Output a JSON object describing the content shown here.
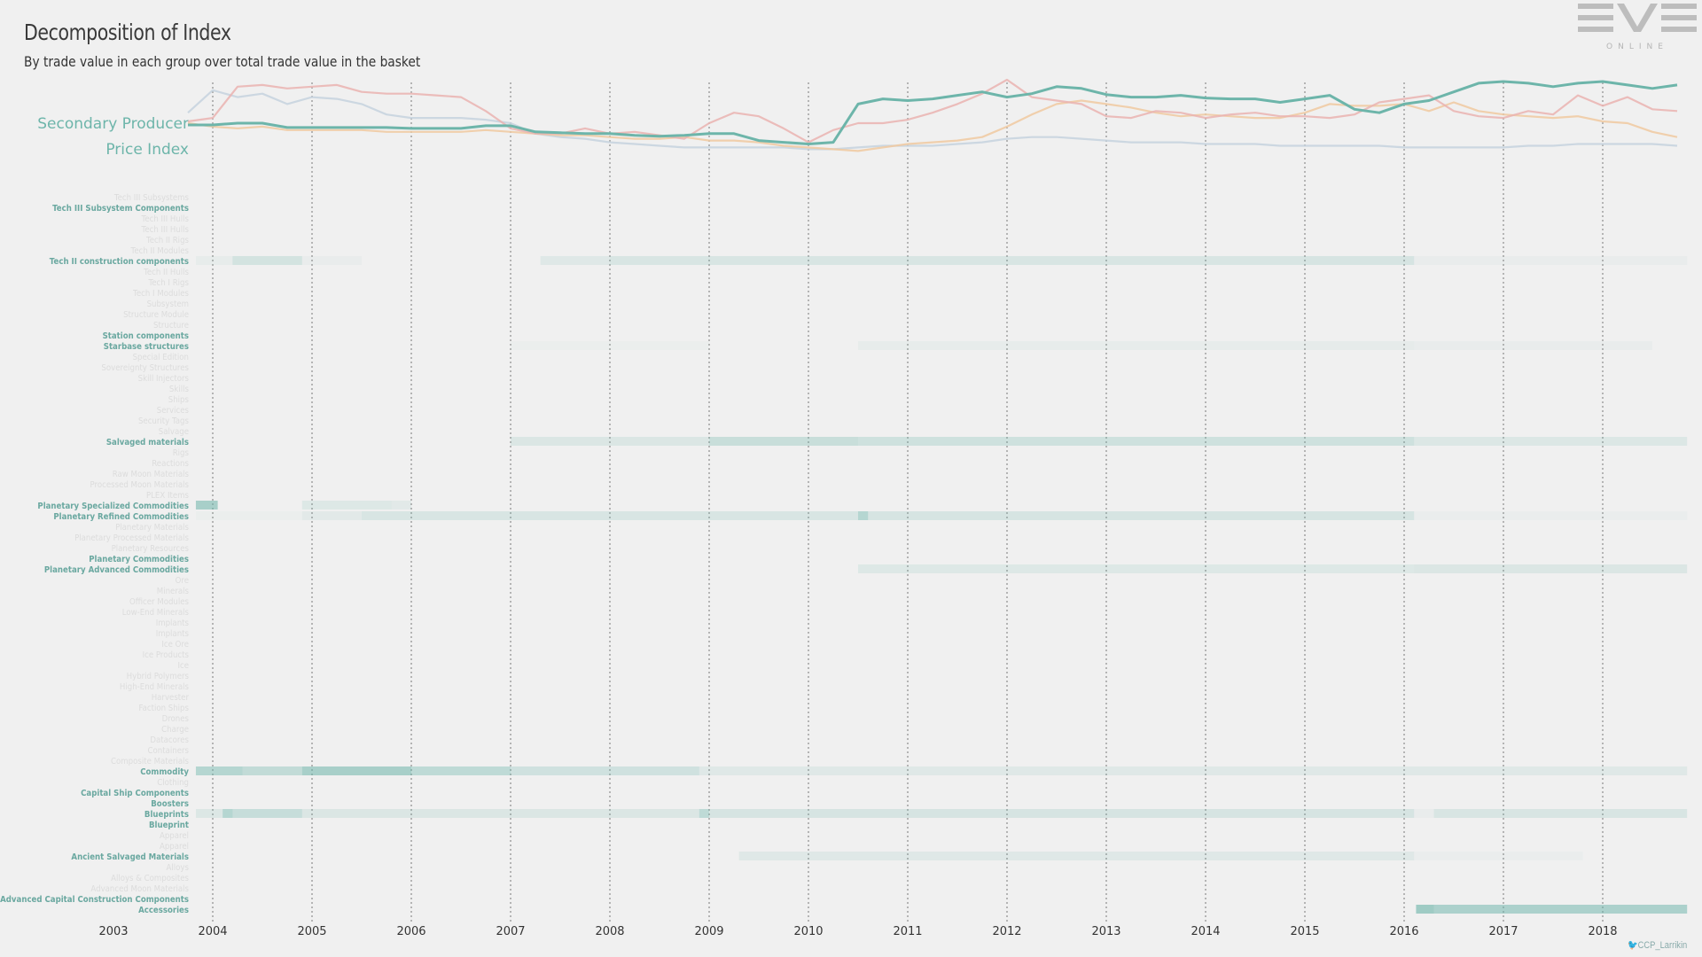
{
  "page": {
    "title": "Decomposition of Index",
    "subtitle": "By trade value in each group over total trade value in the basket",
    "index_label_line1": "Secondary Producer",
    "index_label_line2": "Price Index",
    "logo_text": "ONLINE",
    "credit": "CCP_Larrikin"
  },
  "colors": {
    "teal": "#6db5aa",
    "pink": "#eab3b0",
    "orange": "#f0c9a0",
    "blue": "#c5d2de",
    "axis_text": "#333333",
    "grid": "#777777"
  },
  "chart_data": [
    {
      "type": "line",
      "title": "Secondary Producer Price Index",
      "x": [
        "2003-10",
        "2004-01",
        "2004-04",
        "2004-07",
        "2004-10",
        "2005-01",
        "2005-04",
        "2005-07",
        "2005-10",
        "2006-01",
        "2006-04",
        "2006-07",
        "2006-10",
        "2007-01",
        "2007-04",
        "2007-07",
        "2007-10",
        "2008-01",
        "2008-04",
        "2008-07",
        "2008-10",
        "2009-01",
        "2009-04",
        "2009-07",
        "2009-10",
        "2010-01",
        "2010-04",
        "2010-07",
        "2010-10",
        "2011-01",
        "2011-04",
        "2011-07",
        "2011-10",
        "2012-01",
        "2012-04",
        "2012-07",
        "2012-10",
        "2013-01",
        "2013-04",
        "2013-07",
        "2013-10",
        "2014-01",
        "2014-04",
        "2014-07",
        "2014-10",
        "2015-01",
        "2015-04",
        "2015-07",
        "2015-10",
        "2016-01",
        "2016-04",
        "2016-07",
        "2016-10",
        "2017-01",
        "2017-04",
        "2017-07",
        "2017-10",
        "2018-01",
        "2018-04",
        "2018-07",
        "2018-10"
      ],
      "series": [
        {
          "color": "#6db5aa",
          "values": [
            0.48,
            0.48,
            0.5,
            0.5,
            0.45,
            0.45,
            0.45,
            0.45,
            0.45,
            0.44,
            0.44,
            0.44,
            0.47,
            0.47,
            0.4,
            0.39,
            0.38,
            0.38,
            0.36,
            0.35,
            0.36,
            0.38,
            0.38,
            0.3,
            0.28,
            0.26,
            0.28,
            0.72,
            0.78,
            0.76,
            0.78,
            0.82,
            0.86,
            0.8,
            0.84,
            0.92,
            0.9,
            0.83,
            0.8,
            0.8,
            0.82,
            0.79,
            0.78,
            0.78,
            0.74,
            0.78,
            0.82,
            0.66,
            0.62,
            0.72,
            0.76,
            0.86,
            0.96,
            0.98,
            0.96,
            0.92,
            0.96,
            0.98,
            0.94,
            0.9,
            0.94
          ]
        },
        {
          "color": "#eab3b0",
          "values": [
            0.52,
            0.56,
            0.92,
            0.94,
            0.9,
            0.92,
            0.94,
            0.86,
            0.84,
            0.84,
            0.82,
            0.8,
            0.64,
            0.44,
            0.38,
            0.38,
            0.44,
            0.38,
            0.4,
            0.36,
            0.32,
            0.5,
            0.62,
            0.58,
            0.44,
            0.28,
            0.42,
            0.5,
            0.5,
            0.54,
            0.62,
            0.72,
            0.84,
            1.0,
            0.8,
            0.76,
            0.72,
            0.58,
            0.56,
            0.64,
            0.62,
            0.56,
            0.6,
            0.62,
            0.58,
            0.58,
            0.56,
            0.6,
            0.74,
            0.78,
            0.82,
            0.64,
            0.58,
            0.56,
            0.64,
            0.6,
            0.82,
            0.7,
            0.8,
            0.66,
            0.64
          ]
        },
        {
          "color": "#f0c9a0",
          "values": [
            0.5,
            0.46,
            0.44,
            0.46,
            0.42,
            0.42,
            0.42,
            0.42,
            0.4,
            0.4,
            0.4,
            0.4,
            0.42,
            0.4,
            0.38,
            0.36,
            0.36,
            0.34,
            0.32,
            0.32,
            0.34,
            0.3,
            0.3,
            0.28,
            0.24,
            0.22,
            0.2,
            0.18,
            0.22,
            0.26,
            0.28,
            0.3,
            0.34,
            0.46,
            0.6,
            0.72,
            0.76,
            0.72,
            0.68,
            0.62,
            0.58,
            0.6,
            0.58,
            0.56,
            0.56,
            0.62,
            0.72,
            0.7,
            0.7,
            0.72,
            0.64,
            0.74,
            0.64,
            0.6,
            0.58,
            0.56,
            0.58,
            0.52,
            0.5,
            0.4,
            0.34
          ]
        },
        {
          "color": "#c5d2de",
          "values": [
            0.62,
            0.88,
            0.8,
            0.84,
            0.72,
            0.8,
            0.78,
            0.72,
            0.6,
            0.56,
            0.56,
            0.56,
            0.54,
            0.5,
            0.38,
            0.34,
            0.32,
            0.28,
            0.26,
            0.24,
            0.22,
            0.22,
            0.22,
            0.22,
            0.22,
            0.2,
            0.2,
            0.22,
            0.24,
            0.24,
            0.24,
            0.26,
            0.28,
            0.32,
            0.34,
            0.34,
            0.32,
            0.3,
            0.28,
            0.28,
            0.28,
            0.26,
            0.26,
            0.26,
            0.24,
            0.24,
            0.24,
            0.24,
            0.24,
            0.22,
            0.22,
            0.22,
            0.22,
            0.22,
            0.24,
            0.24,
            0.26,
            0.26,
            0.26,
            0.26,
            0.24
          ]
        }
      ]
    },
    {
      "type": "heatmap",
      "x_ticks": [
        "2003",
        "2004",
        "2005",
        "2006",
        "2007",
        "2008",
        "2009",
        "2010",
        "2011",
        "2012",
        "2013",
        "2014",
        "2015",
        "2016",
        "2017",
        "2018"
      ],
      "categories": [
        {
          "label": "Tech III Subsystems",
          "emphasis": 0
        },
        {
          "label": "Tech III Subsystem Components",
          "emphasis": 1
        },
        {
          "label": "Tech III Hulls",
          "emphasis": 0
        },
        {
          "label": "Tech III Hulls",
          "emphasis": 0
        },
        {
          "label": "Tech II Rigs",
          "emphasis": 0
        },
        {
          "label": "Tech II Modules",
          "emphasis": 0
        },
        {
          "label": "Tech II construction components",
          "emphasis": 1
        },
        {
          "label": "Tech II Hulls",
          "emphasis": 0
        },
        {
          "label": "Tech I Rigs",
          "emphasis": 0
        },
        {
          "label": "Tech I Modules",
          "emphasis": 0
        },
        {
          "label": "Subsystem",
          "emphasis": 0
        },
        {
          "label": "Structure Module",
          "emphasis": 0
        },
        {
          "label": "Structure",
          "emphasis": 0
        },
        {
          "label": "Station components",
          "emphasis": 1
        },
        {
          "label": "Starbase structures",
          "emphasis": 1
        },
        {
          "label": "Special Edition",
          "emphasis": 0
        },
        {
          "label": "Sovereignty Structures",
          "emphasis": 0
        },
        {
          "label": "Skill Injectors",
          "emphasis": 0
        },
        {
          "label": "Skills",
          "emphasis": 0
        },
        {
          "label": "Ships",
          "emphasis": 0
        },
        {
          "label": "Services",
          "emphasis": 0
        },
        {
          "label": "Security Tags",
          "emphasis": 0
        },
        {
          "label": "Salvage",
          "emphasis": 0
        },
        {
          "label": "Salvaged materials",
          "emphasis": 1
        },
        {
          "label": "Rigs",
          "emphasis": 0
        },
        {
          "label": "Reactions",
          "emphasis": 0
        },
        {
          "label": "Raw Moon Materials",
          "emphasis": 0
        },
        {
          "label": "Processed Moon Materials",
          "emphasis": 0
        },
        {
          "label": "PLEX Items",
          "emphasis": 0
        },
        {
          "label": "Planetary Specialized Commodities",
          "emphasis": 1
        },
        {
          "label": "Planetary Refined Commodities",
          "emphasis": 1
        },
        {
          "label": "Planetary Materials",
          "emphasis": 0
        },
        {
          "label": "Planetary Processed Materials",
          "emphasis": 0
        },
        {
          "label": "Planetary Resources",
          "emphasis": 0
        },
        {
          "label": "Planetary Commodities",
          "emphasis": 1
        },
        {
          "label": "Planetary Advanced Commodities",
          "emphasis": 1
        },
        {
          "label": "Ore",
          "emphasis": 0
        },
        {
          "label": "Minerals",
          "emphasis": 0
        },
        {
          "label": "Officer Modules",
          "emphasis": 0
        },
        {
          "label": "Low-End Minerals",
          "emphasis": 0
        },
        {
          "label": "Implants",
          "emphasis": 0
        },
        {
          "label": "Implants",
          "emphasis": 0
        },
        {
          "label": "Ice Ore",
          "emphasis": 0
        },
        {
          "label": "Ice Products",
          "emphasis": 0
        },
        {
          "label": "Ice",
          "emphasis": 0
        },
        {
          "label": "Hybrid Polymers",
          "emphasis": 0
        },
        {
          "label": "High-End Minerals",
          "emphasis": 0
        },
        {
          "label": "Harvester",
          "emphasis": 0
        },
        {
          "label": "Faction Ships",
          "emphasis": 0
        },
        {
          "label": "Drones",
          "emphasis": 0
        },
        {
          "label": "Charge",
          "emphasis": 0
        },
        {
          "label": "Datacores",
          "emphasis": 0
        },
        {
          "label": "Containers",
          "emphasis": 0
        },
        {
          "label": "Composite Materials",
          "emphasis": 0
        },
        {
          "label": "Commodity",
          "emphasis": 1
        },
        {
          "label": "Clothing",
          "emphasis": 0
        },
        {
          "label": "Capital Ship Components",
          "emphasis": 1
        },
        {
          "label": "Boosters",
          "emphasis": 1
        },
        {
          "label": "Blueprints",
          "emphasis": 1
        },
        {
          "label": "Blueprint",
          "emphasis": 1
        },
        {
          "label": "Apparel",
          "emphasis": 0
        },
        {
          "label": "Apparel",
          "emphasis": 0
        },
        {
          "label": "Ancient Salvaged Materials",
          "emphasis": 1
        },
        {
          "label": "Alloys",
          "emphasis": 0
        },
        {
          "label": "Alloys & Composites",
          "emphasis": 0
        },
        {
          "label": "Advanced Moon Materials",
          "emphasis": 0
        },
        {
          "label": "Advanced Capital Construction Components",
          "emphasis": 1
        },
        {
          "label": "Accessories",
          "emphasis": 1
        }
      ],
      "bands": [
        {
          "row": 6,
          "segments": [
            [
              2003.83,
              2004.2,
              0.06
            ],
            [
              2004.2,
              2004.9,
              0.22
            ],
            [
              2004.9,
              2005.5,
              0.05
            ],
            [
              2007.3,
              2008.0,
              0.12
            ],
            [
              2008.0,
              2015.0,
              0.18
            ],
            [
              2015.0,
              2016.1,
              0.2
            ],
            [
              2016.1,
              2018.85,
              0.05
            ]
          ]
        },
        {
          "row": 14,
          "segments": [
            [
              2007.0,
              2009.0,
              0.03
            ],
            [
              2010.5,
              2015.0,
              0.06
            ],
            [
              2015.0,
              2016.1,
              0.08
            ],
            [
              2016.1,
              2018.5,
              0.05
            ]
          ]
        },
        {
          "row": 23,
          "segments": [
            [
              2007.0,
              2009.0,
              0.16
            ],
            [
              2009.0,
              2010.5,
              0.3
            ],
            [
              2010.5,
              2016.1,
              0.26
            ],
            [
              2016.1,
              2018.85,
              0.15
            ]
          ]
        },
        {
          "row": 29,
          "segments": [
            [
              2003.83,
              2004.05,
              0.55
            ],
            [
              2004.9,
              2005.8,
              0.14
            ],
            [
              2005.8,
              2006.0,
              0.1
            ]
          ]
        },
        {
          "row": 30,
          "segments": [
            [
              2003.83,
              2004.9,
              0.03
            ],
            [
              2004.9,
              2005.5,
              0.1
            ],
            [
              2005.5,
              2010.5,
              0.18
            ],
            [
              2010.5,
              2010.6,
              0.45
            ],
            [
              2010.6,
              2016.1,
              0.2
            ],
            [
              2016.1,
              2018.85,
              0.04
            ]
          ]
        },
        {
          "row": 35,
          "segments": [
            [
              2010.5,
              2016.1,
              0.14
            ],
            [
              2016.1,
              2018.85,
              0.16
            ]
          ]
        },
        {
          "row": 54,
          "segments": [
            [
              2003.83,
              2004.3,
              0.45
            ],
            [
              2004.3,
              2004.9,
              0.35
            ],
            [
              2004.9,
              2006.0,
              0.55
            ],
            [
              2006.0,
              2007.0,
              0.38
            ],
            [
              2007.0,
              2008.9,
              0.25
            ],
            [
              2008.9,
              2016.1,
              0.12
            ],
            [
              2016.1,
              2018.85,
              0.12
            ]
          ]
        },
        {
          "row": 58,
          "segments": [
            [
              2003.83,
              2004.1,
              0.15
            ],
            [
              2004.1,
              2004.2,
              0.45
            ],
            [
              2004.2,
              2004.9,
              0.32
            ],
            [
              2004.9,
              2008.9,
              0.16
            ],
            [
              2008.9,
              2009.0,
              0.38
            ],
            [
              2009.0,
              2016.1,
              0.2
            ],
            [
              2016.1,
              2016.3,
              0.05
            ],
            [
              2016.3,
              2018.85,
              0.18
            ]
          ]
        },
        {
          "row": 62,
          "segments": [
            [
              2009.3,
              2016.1,
              0.12
            ],
            [
              2016.1,
              2017.8,
              0.04
            ]
          ]
        },
        {
          "row": 67,
          "segments": [
            [
              2016.12,
              2016.3,
              0.62
            ],
            [
              2016.3,
              2018.85,
              0.52
            ]
          ]
        }
      ]
    }
  ]
}
